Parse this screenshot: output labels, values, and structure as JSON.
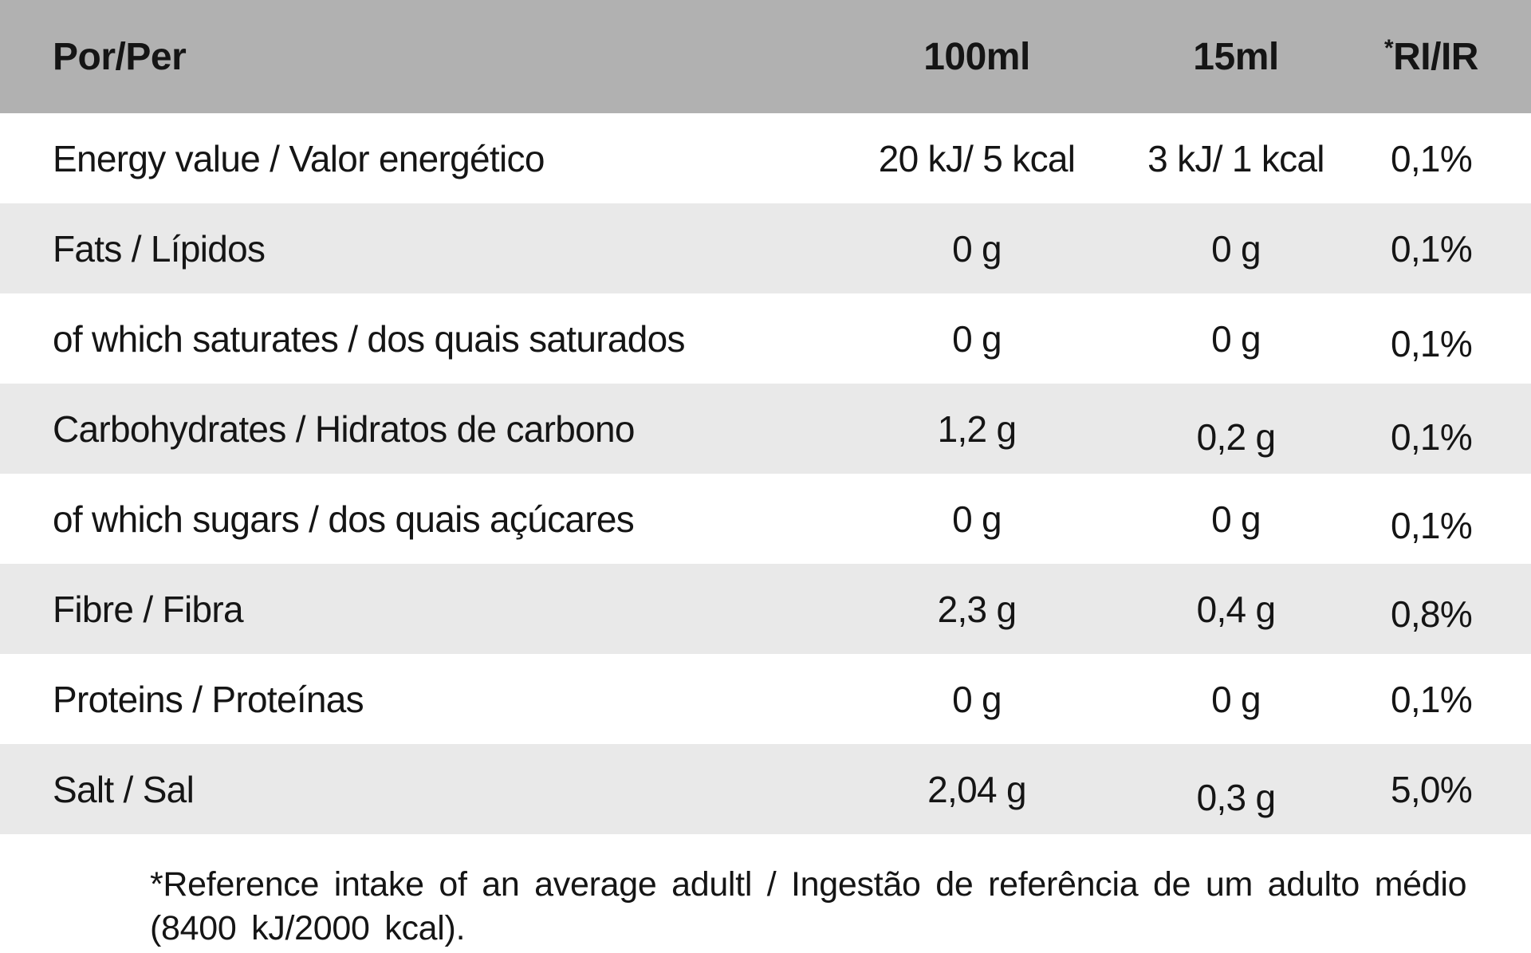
{
  "table": {
    "colors": {
      "header_bg": "#b1b1b1",
      "alt_row_bg": "#e9e9e9",
      "text": "#151515"
    },
    "header": {
      "col_label": "Por/Per",
      "col_100ml": "100ml",
      "col_15ml": "15ml",
      "ri_asterisk": "*",
      "ri_label": "RI/IR"
    },
    "rows": [
      {
        "label": "Energy value / Valor energético",
        "per_100ml": "20 kJ/ 5 kcal",
        "per_15ml": "3 kJ/ 1 kcal",
        "ri": "0,1%"
      },
      {
        "label": "Fats / Lípidos",
        "per_100ml": "0 g",
        "per_15ml": "0 g",
        "ri": "0,1%"
      },
      {
        "label": "of which saturates / dos quais saturados",
        "per_100ml": "0 g",
        "per_15ml": "0 g",
        "ri": "0,1%"
      },
      {
        "label": "Carbohydrates / Hidratos de carbono",
        "per_100ml": "1,2 g",
        "per_15ml": "0,2 g",
        "ri": "0,1%"
      },
      {
        "label": "of which sugars / dos quais açúcares",
        "per_100ml": "0 g",
        "per_15ml": "0 g",
        "ri": "0,1%"
      },
      {
        "label": "Fibre / Fibra",
        "per_100ml": "2,3 g",
        "per_15ml": "0,4 g",
        "ri": "0,8%"
      },
      {
        "label": "Proteins / Proteínas",
        "per_100ml": "0 g",
        "per_15ml": "0 g",
        "ri": "0,1%"
      },
      {
        "label": "Salt / Sal",
        "per_100ml": "2,04 g",
        "per_15ml": "0,3 g",
        "ri": "5,0%"
      }
    ],
    "footnote": {
      "line1": "*Reference intake of an average adultl / Ingestão de referência de um adulto médio",
      "line2": "(8400 kJ/2000 kcal)."
    }
  }
}
